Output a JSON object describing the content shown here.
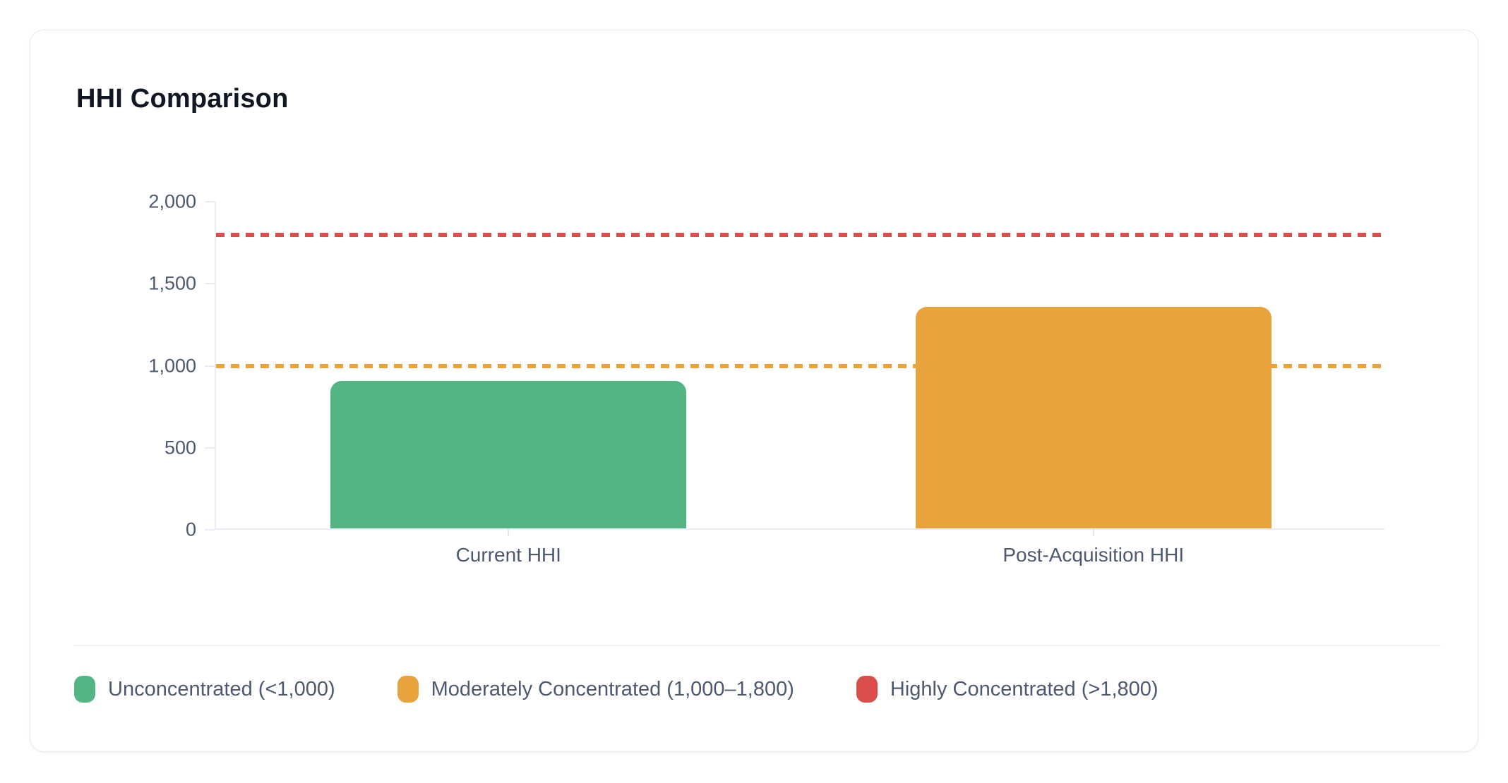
{
  "card": {
    "title": "HHI Comparison"
  },
  "chart_data": {
    "type": "bar",
    "title": "HHI Comparison",
    "categories": [
      "Current HHI",
      "Post-Acquisition HHI"
    ],
    "values": [
      900,
      1350
    ],
    "bar_colors": [
      "#54b584",
      "#e8a33d"
    ],
    "xlabel": "",
    "ylabel": "",
    "ylim": [
      0,
      2000
    ],
    "yticks": [
      "2,000",
      "1,500",
      "1,000",
      "500",
      "0"
    ],
    "ytick_values": [
      2000,
      1500,
      1000,
      500,
      0
    ],
    "grid": "off",
    "legend_position": "bottom",
    "reference_lines": [
      {
        "value": 1800,
        "color": "#da4f4c",
        "style": "dotted"
      },
      {
        "value": 1000,
        "color": "#e8a33d",
        "style": "dotted"
      }
    ]
  },
  "legend": {
    "items": [
      {
        "label": "Unconcentrated (<1,000)",
        "color": "#54b584"
      },
      {
        "label": "Moderately Concentrated (1,000–1,800)",
        "color": "#e8a33d"
      },
      {
        "label": "Highly Concentrated (>1,800)",
        "color": "#da4f4c"
      }
    ]
  }
}
